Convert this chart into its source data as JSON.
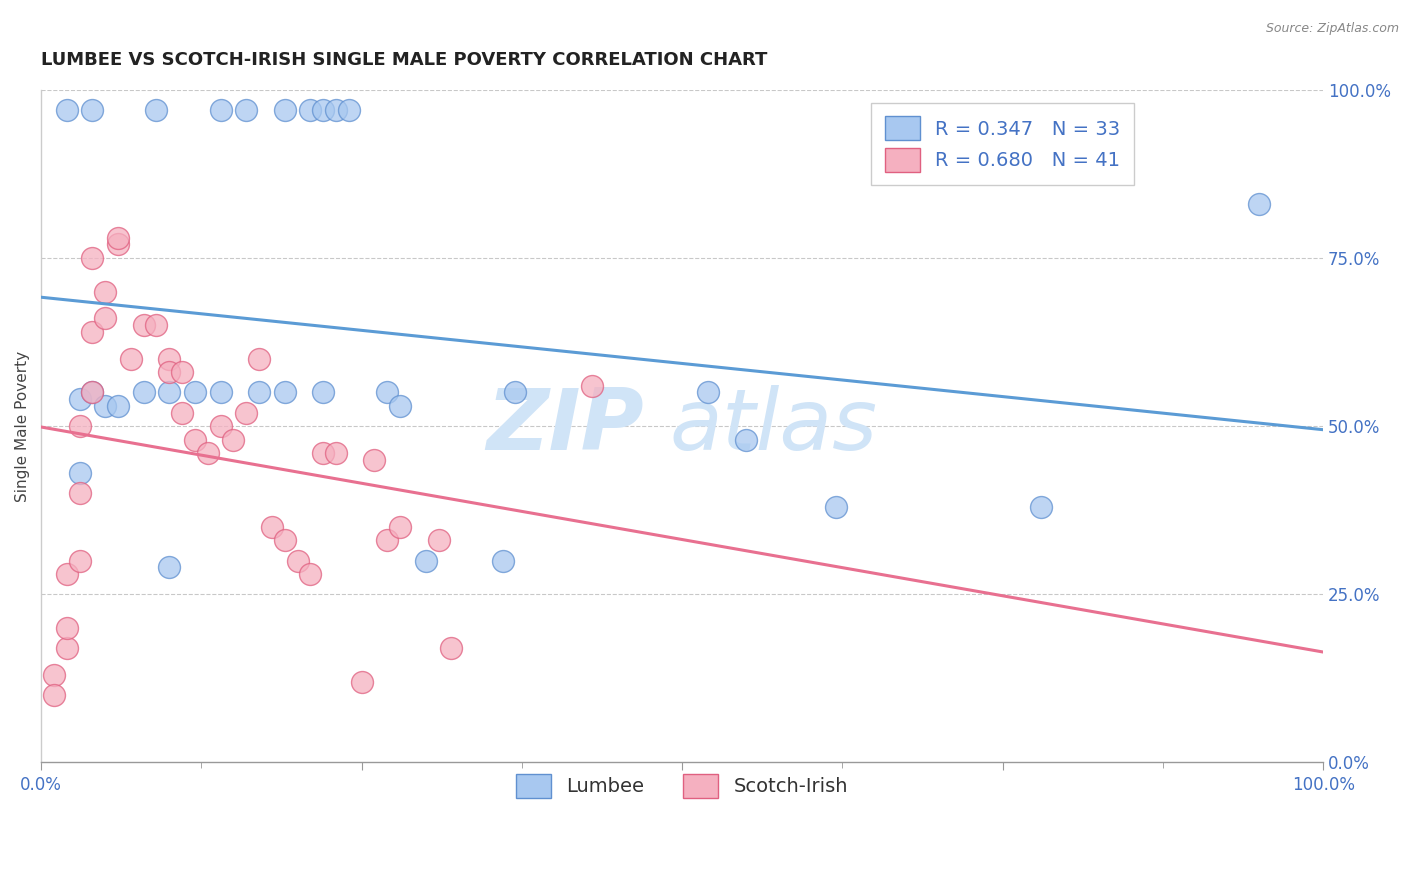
{
  "title": "LUMBEE VS SCOTCH-IRISH SINGLE MALE POVERTY CORRELATION CHART",
  "source_text": "Source: ZipAtlas.com",
  "ylabel": "Single Male Poverty",
  "xlim": [
    0.0,
    1.0
  ],
  "ylim": [
    0.0,
    1.0
  ],
  "xtick_labels": [
    "0.0%",
    "100.0%"
  ],
  "ytick_labels": [
    "100.0%",
    "75.0%",
    "50.0%",
    "25.0%",
    "0.0%"
  ],
  "ytick_positions": [
    1.0,
    0.75,
    0.5,
    0.25,
    0.0
  ],
  "xtick_positions": [
    0.0,
    1.0
  ],
  "lumbee_R": 0.347,
  "lumbee_N": 33,
  "scotch_R": 0.68,
  "scotch_N": 41,
  "lumbee_color": "#a8c8f0",
  "scotch_color": "#f5b0c0",
  "lumbee_edge_color": "#6090d0",
  "scotch_edge_color": "#e06080",
  "lumbee_line_color": "#5b9bd5",
  "scotch_line_color": "#e87090",
  "watermark_color": "#d0e4f7",
  "background_color": "#ffffff",
  "lumbee_scatter_x": [
    0.02,
    0.04,
    0.09,
    0.14,
    0.16,
    0.19,
    0.21,
    0.22,
    0.23,
    0.24,
    0.03,
    0.04,
    0.05,
    0.06,
    0.08,
    0.1,
    0.12,
    0.14,
    0.17,
    0.19,
    0.22,
    0.27,
    0.28,
    0.3,
    0.36,
    0.37,
    0.52,
    0.55,
    0.62,
    0.78,
    0.95,
    0.03,
    0.1
  ],
  "lumbee_scatter_y": [
    0.97,
    0.97,
    0.97,
    0.97,
    0.97,
    0.97,
    0.97,
    0.97,
    0.97,
    0.97,
    0.54,
    0.55,
    0.53,
    0.53,
    0.55,
    0.55,
    0.55,
    0.55,
    0.55,
    0.55,
    0.55,
    0.55,
    0.53,
    0.3,
    0.3,
    0.55,
    0.55,
    0.48,
    0.38,
    0.38,
    0.83,
    0.43,
    0.29
  ],
  "scotch_scatter_x": [
    0.01,
    0.01,
    0.02,
    0.02,
    0.02,
    0.03,
    0.03,
    0.03,
    0.04,
    0.04,
    0.04,
    0.05,
    0.05,
    0.06,
    0.06,
    0.07,
    0.08,
    0.09,
    0.1,
    0.1,
    0.11,
    0.11,
    0.12,
    0.13,
    0.14,
    0.15,
    0.16,
    0.17,
    0.18,
    0.19,
    0.2,
    0.21,
    0.22,
    0.23,
    0.26,
    0.27,
    0.28,
    0.31,
    0.43,
    0.32,
    0.25
  ],
  "scotch_scatter_y": [
    0.13,
    0.1,
    0.17,
    0.2,
    0.28,
    0.3,
    0.4,
    0.5,
    0.55,
    0.64,
    0.75,
    0.7,
    0.66,
    0.77,
    0.78,
    0.6,
    0.65,
    0.65,
    0.6,
    0.58,
    0.58,
    0.52,
    0.48,
    0.46,
    0.5,
    0.48,
    0.52,
    0.6,
    0.35,
    0.33,
    0.3,
    0.28,
    0.46,
    0.46,
    0.45,
    0.33,
    0.35,
    0.33,
    0.56,
    0.17,
    0.12
  ],
  "title_fontsize": 13,
  "label_fontsize": 11,
  "tick_fontsize": 12,
  "legend_fontsize": 14
}
